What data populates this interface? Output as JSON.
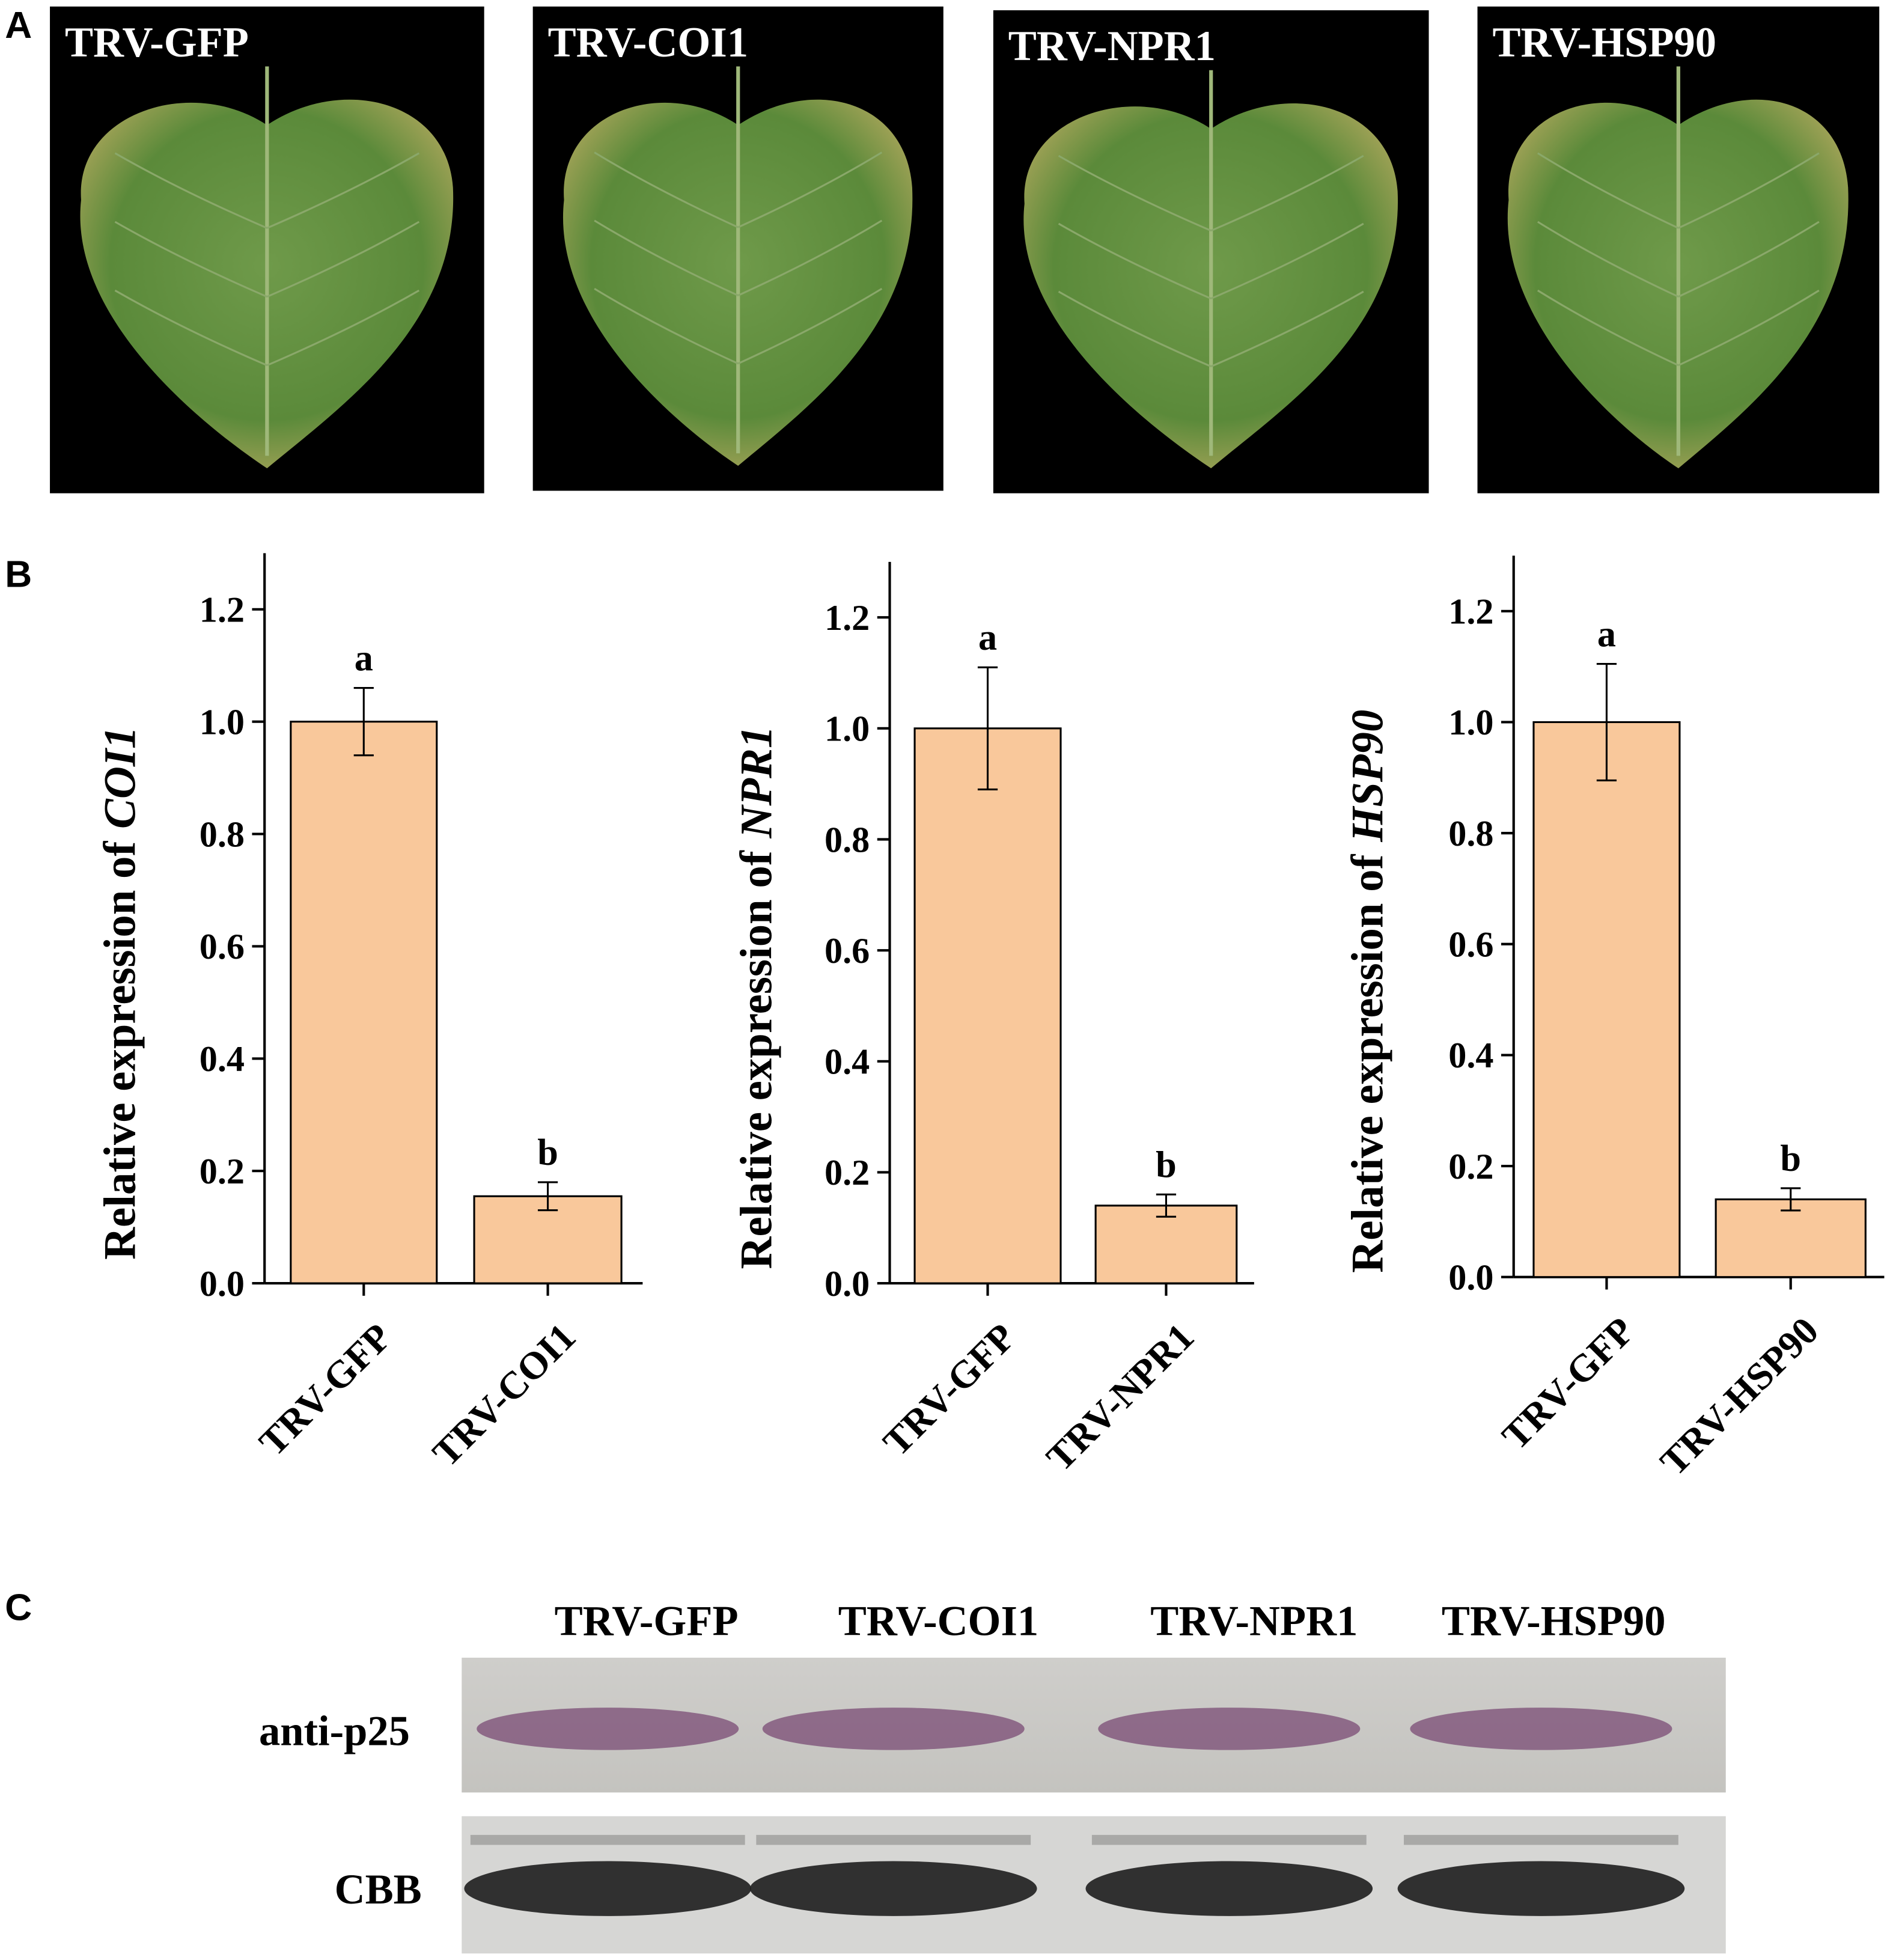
{
  "panel_labels": [
    "A",
    "B",
    "C"
  ],
  "leaf_photos": [
    "TRV-GFP",
    "TRV-COI1",
    "TRV-NPR1",
    "TRV-HSP90"
  ],
  "chart_data": [
    {
      "type": "bar",
      "y_label": {
        "text": "Relative expression of",
        "gene": "COI1"
      },
      "categories": [
        "TRV-GFP",
        "TRV-COI1"
      ],
      "values": [
        1.0,
        0.155
      ],
      "errors": [
        0.06,
        0.025
      ],
      "annotations": [
        "a",
        "b"
      ],
      "color": "#f9c89b",
      "ylim": [
        0,
        1.3
      ],
      "yticks": [
        {
          "value": 0,
          "label": "0.0"
        },
        {
          "value": 0.2,
          "label": "0.2"
        },
        {
          "value": 0.4,
          "label": "0.4"
        },
        {
          "value": 0.6,
          "label": "0.6"
        },
        {
          "value": 0.8,
          "label": "0.8"
        },
        {
          "value": 1,
          "label": "1.0"
        },
        {
          "value": 1.2,
          "label": "1.2"
        }
      ]
    },
    {
      "type": "bar",
      "y_label": {
        "text": "Relative expression of",
        "gene": "NPR1"
      },
      "categories": [
        "TRV-GFP",
        "TRV-NPR1"
      ],
      "values": [
        1.0,
        0.14
      ],
      "errors": [
        0.11,
        0.02
      ],
      "annotations": [
        "a",
        "b"
      ],
      "color": "#f9c89b",
      "ylim": [
        0,
        1.3
      ],
      "yticks": [
        {
          "value": 0,
          "label": "0.0"
        },
        {
          "value": 0.2,
          "label": "0.2"
        },
        {
          "value": 0.4,
          "label": "0.4"
        },
        {
          "value": 0.6,
          "label": "0.6"
        },
        {
          "value": 0.8,
          "label": "0.8"
        },
        {
          "value": 1,
          "label": "1.0"
        },
        {
          "value": 1.2,
          "label": "1.2"
        }
      ]
    },
    {
      "type": "bar",
      "y_label": {
        "text": "Relative expression of",
        "gene": "HSP90"
      },
      "categories": [
        "TRV-GFP",
        "TRV-HSP90"
      ],
      "values": [
        1.0,
        0.14
      ],
      "errors": [
        0.105,
        0.02
      ],
      "annotations": [
        "a",
        "b"
      ],
      "color": "#f9c89b",
      "ylim": [
        0,
        1.3
      ],
      "yticks": [
        {
          "value": 0,
          "label": "0.0"
        },
        {
          "value": 0.2,
          "label": "0.2"
        },
        {
          "value": 0.4,
          "label": "0.4"
        },
        {
          "value": 0.6,
          "label": "0.6"
        },
        {
          "value": 0.8,
          "label": "0.8"
        },
        {
          "value": 1,
          "label": "1.0"
        },
        {
          "value": 1.2,
          "label": "1.2"
        }
      ]
    }
  ],
  "blot": {
    "lanes": [
      "TRV-GFP",
      "TRV-COI1",
      "TRV-NPR1",
      "TRV-HSP90"
    ],
    "rows": [
      "anti-p25",
      "CBB"
    ]
  }
}
